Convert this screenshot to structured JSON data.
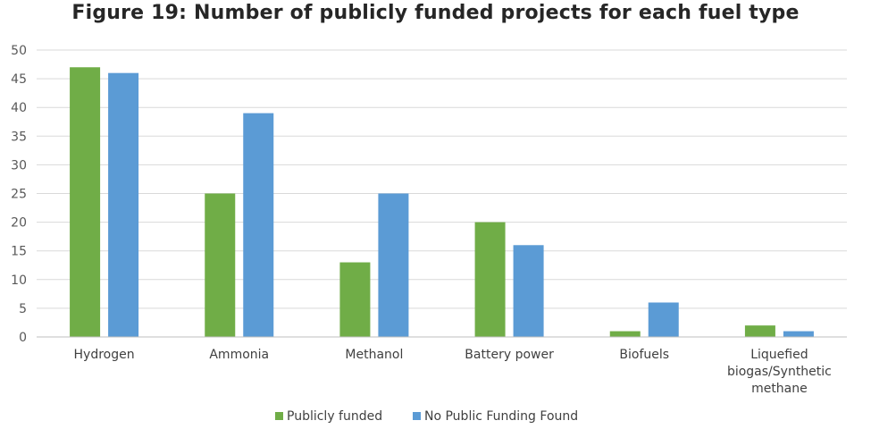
{
  "chart_data": {
    "type": "bar",
    "title": "Figure 19: Number of publicly funded projects for each fuel type",
    "categories": [
      [
        "Hydrogen"
      ],
      [
        "Ammonia"
      ],
      [
        "Methanol"
      ],
      [
        "Battery power"
      ],
      [
        "Biofuels"
      ],
      [
        "Liquefied",
        "biogas/Synthetic",
        "methane"
      ]
    ],
    "series": [
      {
        "name": "Publicly funded",
        "color": "#70ad47",
        "values": [
          47,
          25,
          13,
          20,
          1,
          2
        ]
      },
      {
        "name": "No Public Funding Found",
        "color": "#5b9bd5",
        "values": [
          46,
          39,
          25,
          16,
          6,
          1
        ]
      }
    ],
    "ylim": [
      0,
      50
    ],
    "yticks": [
      0,
      5,
      10,
      15,
      20,
      25,
      30,
      35,
      40,
      45,
      50
    ],
    "grid": true,
    "legend": "bottom-center"
  }
}
